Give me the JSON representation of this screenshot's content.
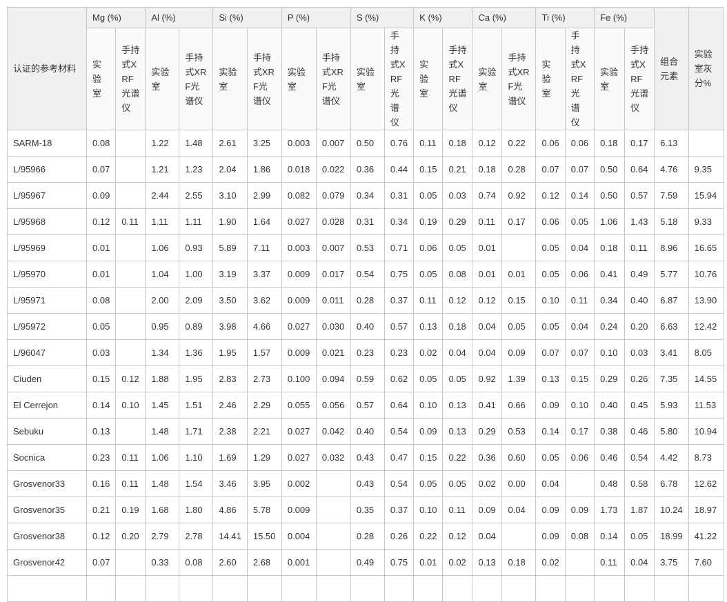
{
  "header": {
    "material": "认证的参考材料",
    "elements": [
      "Mg (%)",
      "Al (%)",
      "Si (%)",
      "P (%)",
      "S (%)",
      "K (%)",
      "Ca (%)",
      "Ti (%)",
      "Fe (%)"
    ],
    "lab": "实验室",
    "xrf": "手持式XRF光谱仪",
    "combined": "组合元素",
    "ash": "实验室灰分%"
  },
  "rows": [
    {
      "name": "SARM-18",
      "values": [
        "0.08",
        "",
        "1.22",
        "1.48",
        "2.61",
        "3.25",
        "0.003",
        "0.007",
        "0.50",
        "0.76",
        "0.11",
        "0.18",
        "0.12",
        "0.22",
        "0.06",
        "0.06",
        "0.18",
        "0.17",
        "6.13",
        ""
      ]
    },
    {
      "name": "L/95966",
      "values": [
        "0.07",
        "",
        "1.21",
        "1.23",
        "2.04",
        "1.86",
        "0.018",
        "0.022",
        "0.36",
        "0.44",
        "0.15",
        "0.21",
        "0.18",
        "0.28",
        "0.07",
        "0.07",
        "0.50",
        "0.64",
        "4.76",
        "9.35"
      ]
    },
    {
      "name": "L/95967",
      "values": [
        "0.09",
        "",
        "2.44",
        "2.55",
        "3.10",
        "2.99",
        "0.082",
        "0.079",
        "0.34",
        "0.31",
        "0.05",
        "0.03",
        "0.74",
        "0.92",
        "0.12",
        "0.14",
        "0.50",
        "0.57",
        "7.59",
        "15.94"
      ]
    },
    {
      "name": "L/95968",
      "values": [
        "0.12",
        "0.11",
        "1.11",
        "1.11",
        "1.90",
        "1.64",
        "0.027",
        "0.028",
        "0.31",
        "0.34",
        "0.19",
        "0.29",
        "0.11",
        "0.17",
        "0.06",
        "0.05",
        "1.06",
        "1.43",
        "5.18",
        "9.33"
      ]
    },
    {
      "name": "L/95969",
      "values": [
        "0.01",
        "",
        "1.06",
        "0.93",
        "5.89",
        "7.11",
        "0.003",
        "0.007",
        "0.53",
        "0.71",
        "0.06",
        "0.05",
        "0.01",
        "",
        "0.05",
        "0.04",
        "0.18",
        "0.11",
        "8.96",
        "16.65"
      ]
    },
    {
      "name": "L/95970",
      "values": [
        "0.01",
        "",
        "1.04",
        "1.00",
        "3.19",
        "3.37",
        "0.009",
        "0.017",
        "0.54",
        "0.75",
        "0.05",
        "0.08",
        "0.01",
        "0.01",
        "0.05",
        "0.06",
        "0.41",
        "0.49",
        "5.77",
        "10.76"
      ]
    },
    {
      "name": "L/95971",
      "values": [
        "0.08",
        "",
        "2.00",
        "2.09",
        "3.50",
        "3.62",
        "0.009",
        "0.011",
        "0.28",
        "0.37",
        "0.11",
        "0.12",
        "0.12",
        "0.15",
        "0.10",
        "0.11",
        "0.34",
        "0.40",
        "6.87",
        "13.90"
      ]
    },
    {
      "name": "L/95972",
      "values": [
        "0.05",
        "",
        "0.95",
        "0.89",
        "3.98",
        "4.66",
        "0.027",
        "0.030",
        "0.40",
        "0.57",
        "0.13",
        "0.18",
        "0.04",
        "0.05",
        "0.05",
        "0.04",
        "0.24",
        "0.20",
        "6.63",
        "12.42"
      ]
    },
    {
      "name": "L/96047",
      "values": [
        "0.03",
        "",
        "1.34",
        "1.36",
        "1.95",
        "1.57",
        "0.009",
        "0.021",
        "0.23",
        "0.23",
        "0.02",
        "0.04",
        "0.04",
        "0.09",
        "0.07",
        "0.07",
        "0.10",
        "0.03",
        "3.41",
        "8.05"
      ]
    },
    {
      "name": "Ciuden",
      "values": [
        "0.15",
        "0.12",
        "1.88",
        "1.95",
        "2.83",
        "2.73",
        "0.100",
        "0.094",
        "0.59",
        "0.62",
        "0.05",
        "0.05",
        "0.92",
        "1.39",
        "0.13",
        "0.15",
        "0.29",
        "0.26",
        "7.35",
        "14.55"
      ]
    },
    {
      "name": "El Cerrejon",
      "values": [
        "0.14",
        "0.10",
        "1.45",
        "1.51",
        "2.46",
        "2.29",
        "0.055",
        "0.056",
        "0.57",
        "0.64",
        "0.10",
        "0.13",
        "0.41",
        "0.66",
        "0.09",
        "0.10",
        "0.40",
        "0.45",
        "5.93",
        "11.53"
      ]
    },
    {
      "name": "Sebuku",
      "values": [
        "0.13",
        "",
        "1.48",
        "1.71",
        "2.38",
        "2.21",
        "0.027",
        "0.042",
        "0.40",
        "0.54",
        "0.09",
        "0.13",
        "0.29",
        "0.53",
        "0.14",
        "0.17",
        "0.38",
        "0.46",
        "5.80",
        "10.94"
      ]
    },
    {
      "name": "Socnica",
      "values": [
        "0.23",
        "0.11",
        "1.06",
        "1.10",
        "1.69",
        "1.29",
        "0.027",
        "0.032",
        "0.43",
        "0.47",
        "0.15",
        "0.22",
        "0.36",
        "0.60",
        "0.05",
        "0.06",
        "0.46",
        "0.54",
        "4.42",
        "8.73"
      ]
    },
    {
      "name": "Grosvenor33",
      "values": [
        "0.16",
        "0.11",
        "1.48",
        "1.54",
        "3.46",
        "3.95",
        "0.002",
        "",
        "0.43",
        "0.54",
        "0.05",
        "0.05",
        "0.02",
        "0.00",
        "0.04",
        "",
        "0.48",
        "0.58",
        "6.78",
        "12.62"
      ]
    },
    {
      "name": "Grosvenor35",
      "values": [
        "0.21",
        "0.19",
        "1.68",
        "1.80",
        "4.86",
        "5.78",
        "0.009",
        "",
        "0.35",
        "0.37",
        "0.10",
        "0.11",
        "0.09",
        "0.04",
        "0.09",
        "0.09",
        "1.73",
        "1.87",
        "10.24",
        "18.97"
      ]
    },
    {
      "name": "Grosvenor38",
      "values": [
        "0.12",
        "0.20",
        "2.79",
        "2.78",
        "14.41",
        "15.50",
        "0.004",
        "",
        "0.28",
        "0.26",
        "0.22",
        "0.12",
        "0.04",
        "",
        "0.09",
        "0.08",
        "0.14",
        "0.05",
        "18.99",
        "41.22"
      ]
    },
    {
      "name": "Grosvenor42",
      "values": [
        "0.07",
        "",
        "0.33",
        "0.08",
        "2.60",
        "2.68",
        "0.001",
        "",
        "0.49",
        "0.75",
        "0.01",
        "0.02",
        "0.13",
        "0.18",
        "0.02",
        "",
        "0.11",
        "0.04",
        "3.75",
        "7.60"
      ]
    }
  ]
}
